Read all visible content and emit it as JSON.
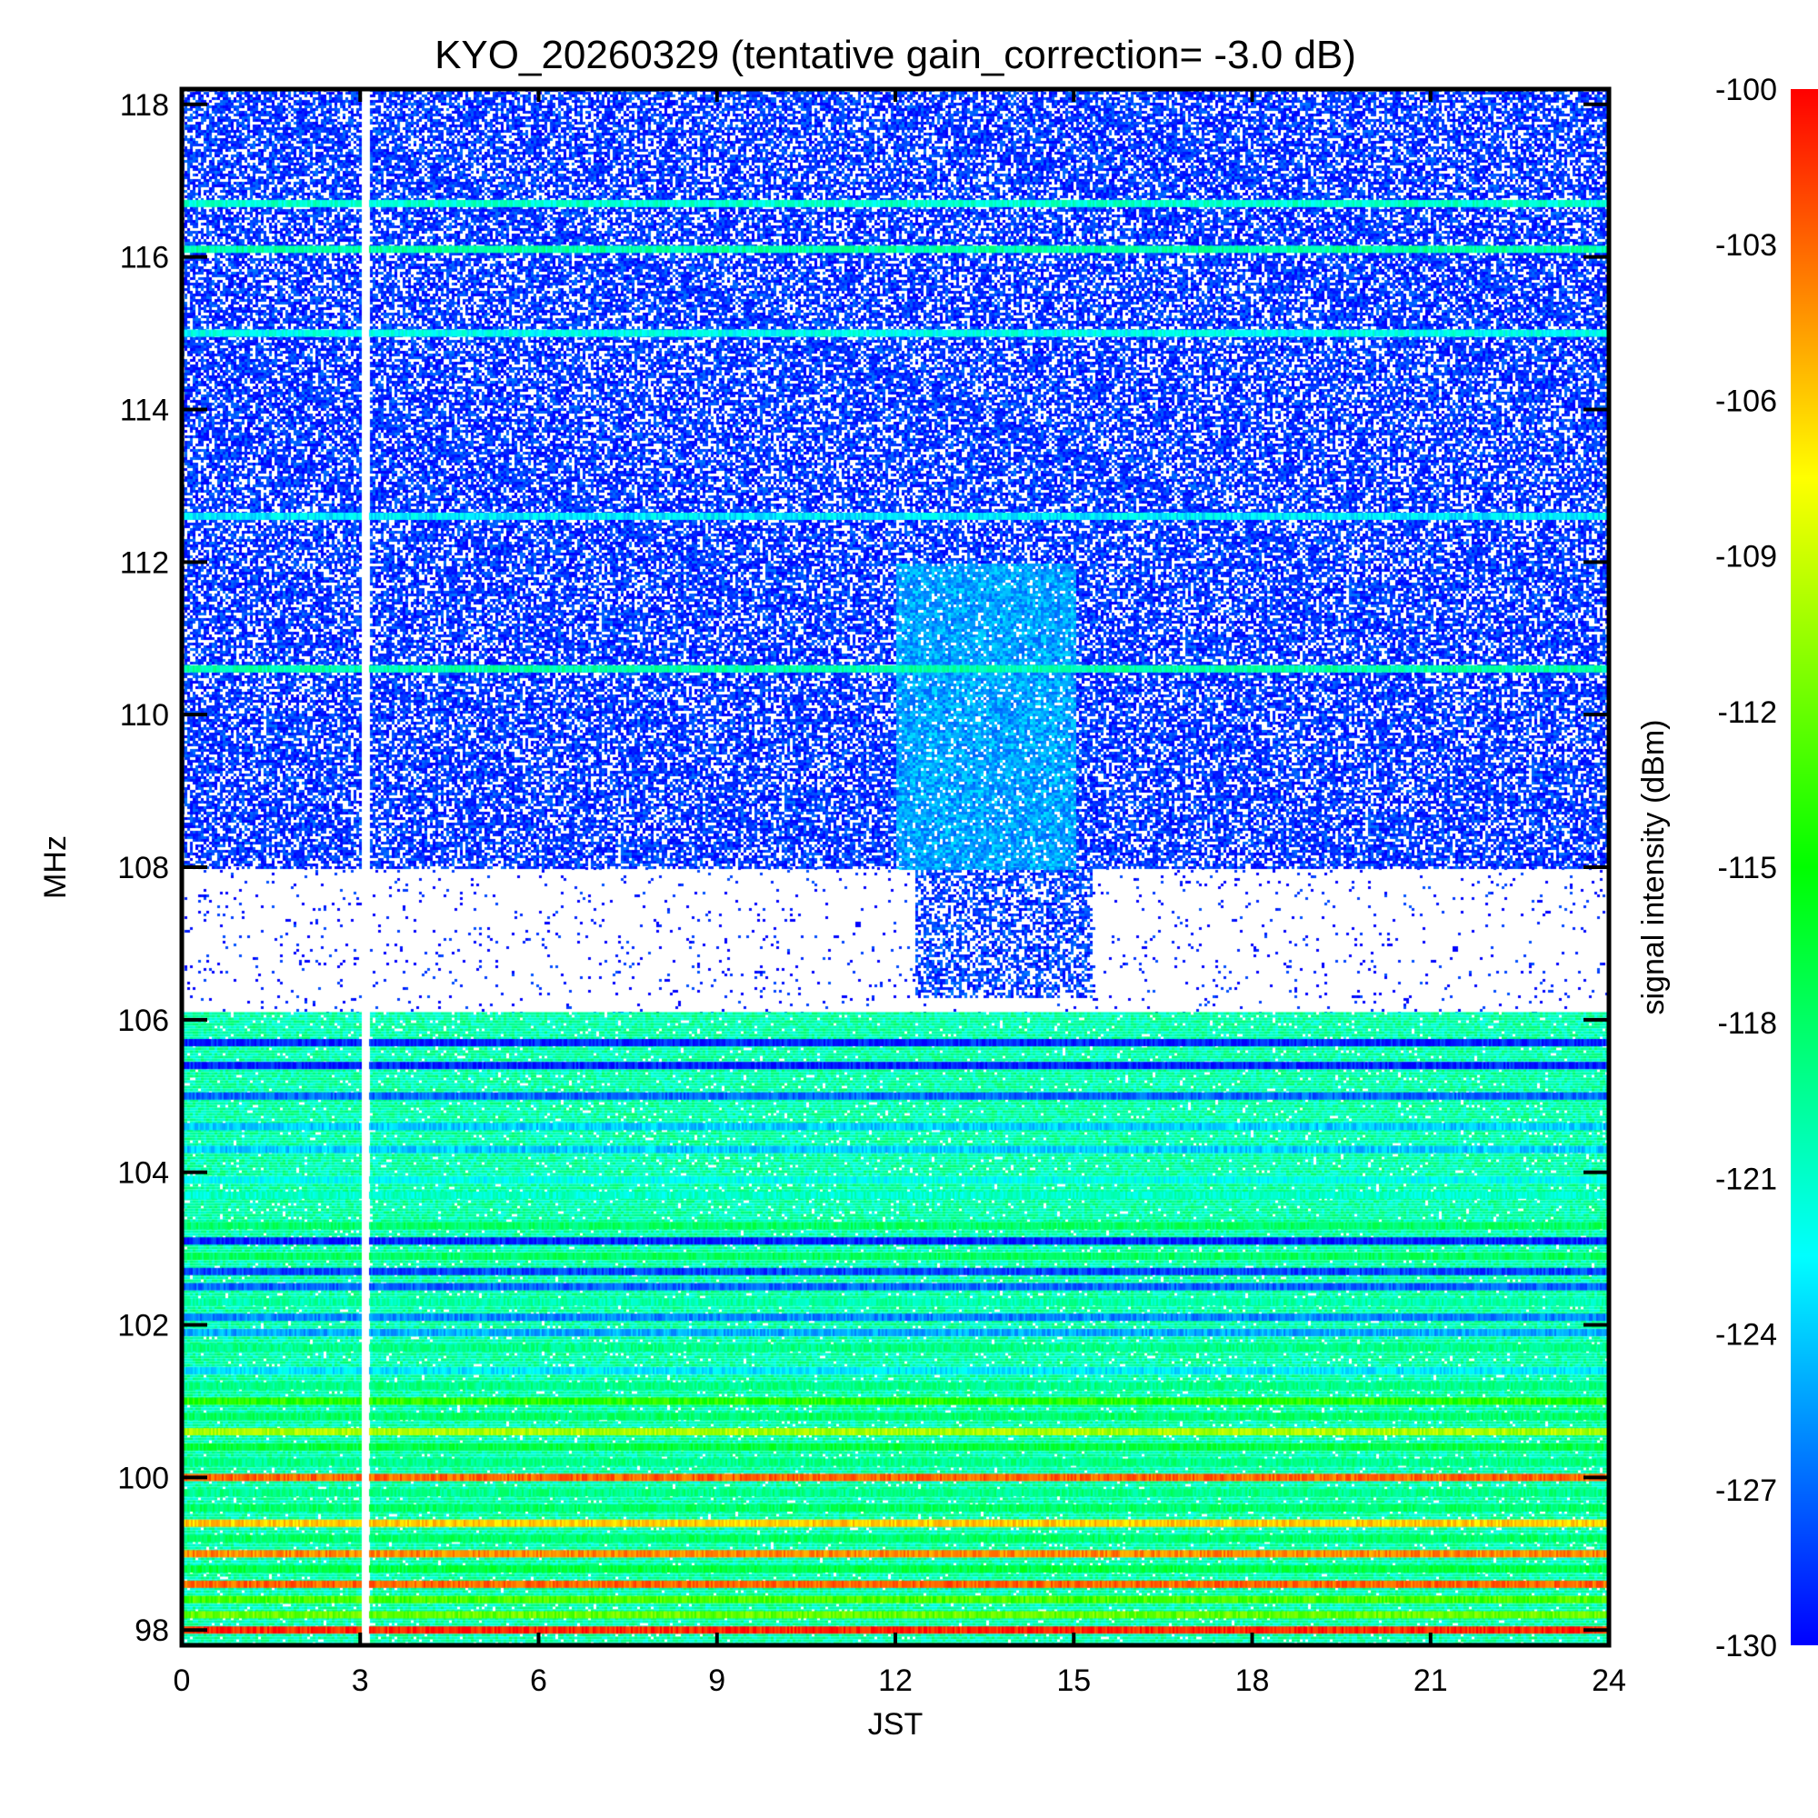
{
  "chart_data": {
    "type": "heatmap",
    "title": "KYO_20260329 (tentative gain_correction= -3.0 dB)",
    "xlabel": "JST",
    "ylabel": "MHz",
    "xlim": [
      0,
      24
    ],
    "ylim": [
      97.8,
      118.2
    ],
    "xticks": [
      "0",
      "3",
      "6",
      "9",
      "12",
      "15",
      "18",
      "21",
      "24"
    ],
    "yticks": [
      "98",
      "100",
      "102",
      "104",
      "106",
      "108",
      "110",
      "112",
      "114",
      "116",
      "118"
    ],
    "colorbar": {
      "label": "signal intensity (dBm)",
      "range": [
        -130,
        -100
      ],
      "ticks": [
        "-100",
        "-103",
        "-106",
        "-109",
        "-112",
        "-115",
        "-118",
        "-121",
        "-124",
        "-127",
        "-130"
      ],
      "colormap": [
        "#0000ff",
        "#00ffff",
        "#00ff00",
        "#ffff00",
        "#ff0000"
      ]
    },
    "gaps": [
      {
        "x_start": 3.0,
        "x_end": 3.12,
        "note": "data gap (white vertical strip)"
      }
    ],
    "regions": [
      {
        "band": [
          108.0,
          118.2
        ],
        "level_dbm": -128.5,
        "coverage": 0.72,
        "note": "air band, mostly blue noise floor with white dropouts"
      },
      {
        "band": [
          106.1,
          108.0
        ],
        "level_dbm": -129.5,
        "coverage": 0.04,
        "note": "mostly empty, activity cluster 12.5-15 JST"
      },
      {
        "band": [
          97.8,
          106.1
        ],
        "level_dbm": -120,
        "coverage": 0.95,
        "note": "FM broadcast band with continuous carriers"
      }
    ],
    "hotspots": [
      {
        "x_start": 12.3,
        "x_end": 15.3,
        "y_start": 106.3,
        "y_end": 108.0,
        "level_dbm": -129,
        "note": "burst of blue activity"
      },
      {
        "x_start": 12.0,
        "x_end": 15.0,
        "y_start": 108.0,
        "y_end": 112.0,
        "level_dbm": -126,
        "note": "enhanced cyan noise"
      }
    ],
    "carriers": [
      {
        "freq": 116.7,
        "level_dbm": -121
      },
      {
        "freq": 116.1,
        "level_dbm": -120
      },
      {
        "freq": 115.0,
        "level_dbm": -122
      },
      {
        "freq": 112.6,
        "level_dbm": -123
      },
      {
        "freq": 110.6,
        "level_dbm": -120
      },
      {
        "freq": 105.7,
        "level_dbm": -129
      },
      {
        "freq": 105.4,
        "level_dbm": -129
      },
      {
        "freq": 105.0,
        "level_dbm": -127
      },
      {
        "freq": 104.6,
        "level_dbm": -124
      },
      {
        "freq": 104.3,
        "level_dbm": -124
      },
      {
        "freq": 103.9,
        "level_dbm": -122
      },
      {
        "freq": 103.7,
        "level_dbm": -121
      },
      {
        "freq": 103.3,
        "level_dbm": -118
      },
      {
        "freq": 103.1,
        "level_dbm": -129
      },
      {
        "freq": 102.9,
        "level_dbm": -118
      },
      {
        "freq": 102.7,
        "level_dbm": -128
      },
      {
        "freq": 102.5,
        "level_dbm": -127
      },
      {
        "freq": 102.3,
        "level_dbm": -120
      },
      {
        "freq": 102.1,
        "level_dbm": -126
      },
      {
        "freq": 101.9,
        "level_dbm": -125
      },
      {
        "freq": 101.7,
        "level_dbm": -119
      },
      {
        "freq": 101.4,
        "level_dbm": -123
      },
      {
        "freq": 101.2,
        "level_dbm": -119
      },
      {
        "freq": 101.0,
        "level_dbm": -114
      },
      {
        "freq": 100.8,
        "level_dbm": -118
      },
      {
        "freq": 100.6,
        "level_dbm": -110
      },
      {
        "freq": 100.4,
        "level_dbm": -117
      },
      {
        "freq": 100.2,
        "level_dbm": -119
      },
      {
        "freq": 100.0,
        "level_dbm": -103
      },
      {
        "freq": 99.8,
        "level_dbm": -119
      },
      {
        "freq": 99.6,
        "level_dbm": -118
      },
      {
        "freq": 99.4,
        "level_dbm": -106
      },
      {
        "freq": 99.2,
        "level_dbm": -118
      },
      {
        "freq": 99.0,
        "level_dbm": -104
      },
      {
        "freq": 98.8,
        "level_dbm": -117
      },
      {
        "freq": 98.6,
        "level_dbm": -103
      },
      {
        "freq": 98.4,
        "level_dbm": -113
      },
      {
        "freq": 98.2,
        "level_dbm": -112
      },
      {
        "freq": 98.0,
        "level_dbm": -101
      }
    ]
  }
}
